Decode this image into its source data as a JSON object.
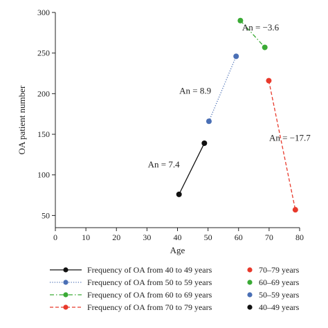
{
  "chart_data": {
    "type": "scatter",
    "xlabel": "Age",
    "ylabel": "OA patient number",
    "xlim": [
      0,
      80
    ],
    "ylim": [
      35,
      300
    ],
    "xticks": [
      0,
      10,
      20,
      30,
      40,
      50,
      60,
      70,
      80
    ],
    "yticks": [
      50,
      100,
      150,
      200,
      250,
      300
    ],
    "grid": false,
    "legend_placement": "bottom",
    "series": [
      {
        "name": "Frequency of OA from 40 to 49 years",
        "color": "#111111",
        "dash": "solid",
        "points": [
          {
            "x": 40.5,
            "y": 76
          },
          {
            "x": 48.8,
            "y": 139
          }
        ]
      },
      {
        "name": "Frequency of OA from 50 to 59 years",
        "color": "#4a6fb5",
        "dash": "dotted",
        "points": [
          {
            "x": 50.3,
            "y": 166
          },
          {
            "x": 59.2,
            "y": 246
          }
        ]
      },
      {
        "name": "Frequency of OA from 60 to 69 years",
        "color": "#3aaa35",
        "dash": "dashdot",
        "points": [
          {
            "x": 60.6,
            "y": 290
          },
          {
            "x": 68.6,
            "y": 257
          }
        ]
      },
      {
        "name": "Frequency of OA from 70 to 79 years",
        "color": "#e8392b",
        "dash": "dashed",
        "points": [
          {
            "x": 69.9,
            "y": 216
          },
          {
            "x": 78.6,
            "y": 57
          }
        ]
      }
    ],
    "point_legend": [
      {
        "name": "70–79 years",
        "color": "#e8392b"
      },
      {
        "name": "60–69 years",
        "color": "#3aaa35"
      },
      {
        "name": "50–59 years",
        "color": "#4a6fb5"
      },
      {
        "name": "40–49 years",
        "color": "#111111"
      }
    ],
    "annotations": [
      {
        "text": "An = 7.4",
        "x": 35.5,
        "y": 109
      },
      {
        "text": "An = 8.9",
        "x": 45.8,
        "y": 200
      },
      {
        "text": "An = −3.6",
        "x": 67.2,
        "y": 278
      },
      {
        "text": "An = −17.7",
        "x": 76.8,
        "y": 142
      }
    ]
  }
}
